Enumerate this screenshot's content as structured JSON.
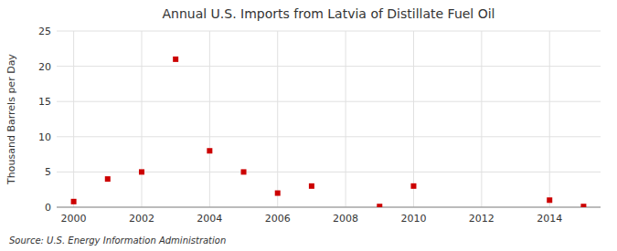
{
  "chart_data": {
    "type": "scatter",
    "title": "Annual U.S. Imports from Latvia of Distillate Fuel Oil",
    "ylabel": "Thousand Barrels per Day",
    "annotations": [
      "Source: U.S. Energy Information Administration"
    ],
    "x": [
      2000,
      2001,
      2002,
      2003,
      2004,
      2005,
      2006,
      2007,
      2009,
      2010,
      2014,
      2015
    ],
    "values": [
      0.8,
      4.0,
      5.0,
      21.0,
      8.0,
      5.0,
      2.0,
      3.0,
      0.1,
      3.0,
      1.0,
      0.1
    ],
    "color": "#cc0000",
    "marker": "square",
    "xlim": [
      1999.5,
      2015.5
    ],
    "ylim": [
      0,
      25
    ],
    "xticks": [
      2000,
      2002,
      2004,
      2006,
      2008,
      2010,
      2012,
      2014
    ],
    "yticks": [
      0,
      5,
      10,
      15,
      20,
      25
    ],
    "grid": true
  }
}
